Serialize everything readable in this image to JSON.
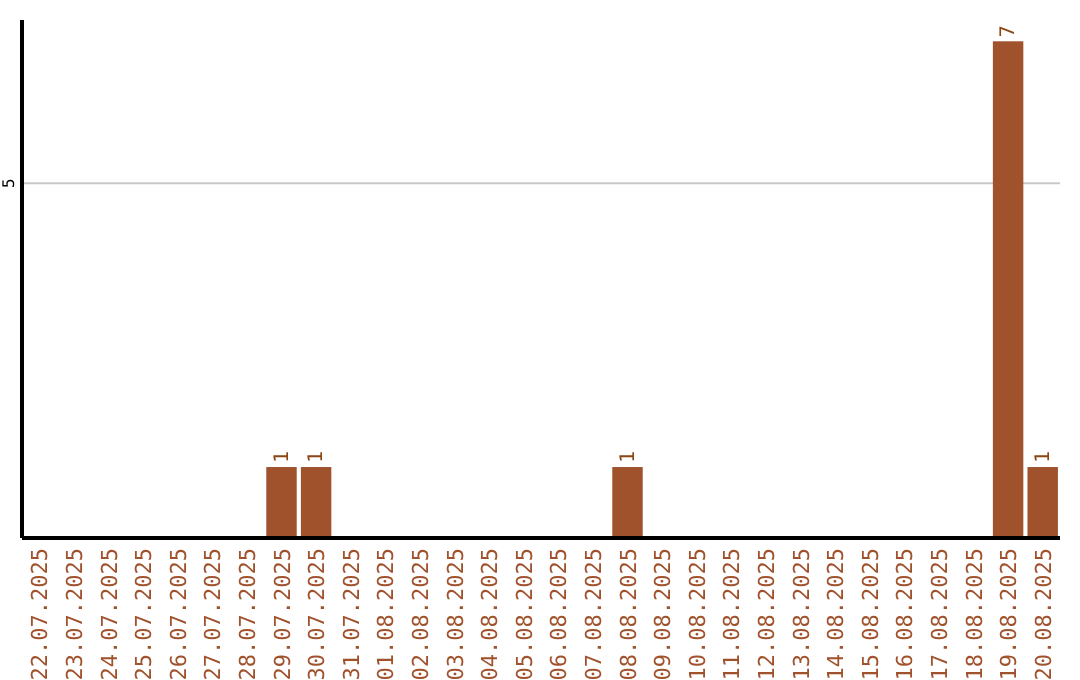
{
  "chart_data": {
    "type": "bar",
    "categories": [
      "22.07.2025",
      "23.07.2025",
      "24.07.2025",
      "25.07.2025",
      "26.07.2025",
      "27.07.2025",
      "28.07.2025",
      "29.07.2025",
      "30.07.2025",
      "31.07.2025",
      "01.08.2025",
      "02.08.2025",
      "03.08.2025",
      "04.08.2025",
      "05.08.2025",
      "06.08.2025",
      "07.08.2025",
      "08.08.2025",
      "09.08.2025",
      "10.08.2025",
      "11.08.2025",
      "12.08.2025",
      "13.08.2025",
      "14.08.2025",
      "15.08.2025",
      "16.08.2025",
      "17.08.2025",
      "18.08.2025",
      "19.08.2025",
      "20.08.2025"
    ],
    "values": [
      0,
      0,
      0,
      0,
      0,
      0,
      0,
      1,
      1,
      0,
      0,
      0,
      0,
      0,
      0,
      0,
      0,
      1,
      0,
      0,
      0,
      0,
      0,
      0,
      0,
      0,
      0,
      0,
      7,
      1
    ],
    "value_labels": [
      null,
      null,
      null,
      null,
      null,
      null,
      null,
      "1",
      "1",
      null,
      null,
      null,
      null,
      null,
      null,
      null,
      null,
      "1",
      null,
      null,
      null,
      null,
      null,
      null,
      null,
      null,
      null,
      null,
      "7",
      "1"
    ],
    "color": "#a0522d",
    "ylim": [
      0,
      7.3
    ],
    "yticks": [
      5
    ],
    "grid": "y"
  }
}
